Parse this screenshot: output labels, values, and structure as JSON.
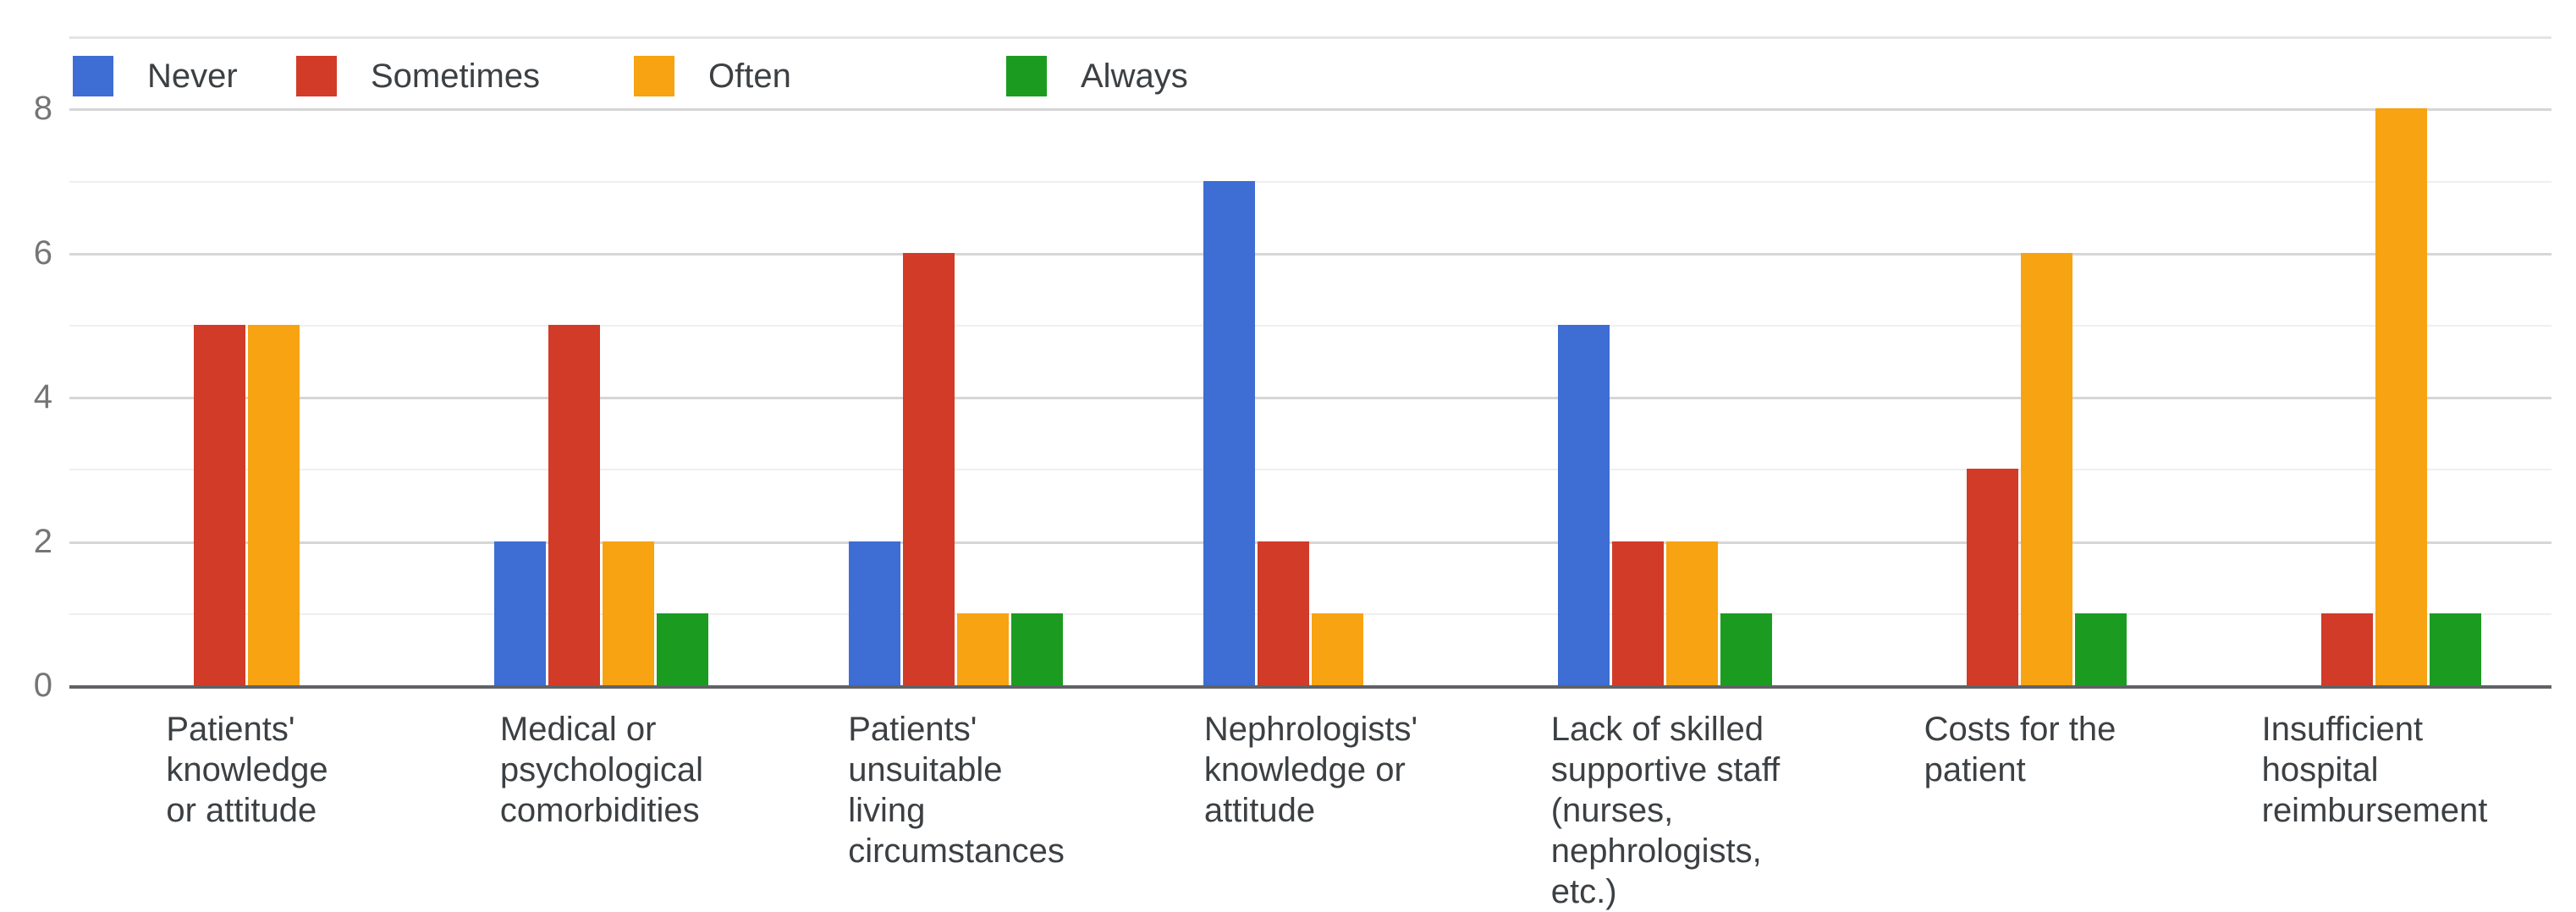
{
  "chart_data": {
    "type": "bar",
    "title": "",
    "xlabel": "",
    "ylabel": "",
    "categories": [
      "Patients'\nknowledge\nor attitude",
      "Medical or\npsychological\ncomorbidities",
      "Patients'\nunsuitable\nliving\ncircumstances",
      "Nephrologists'\nknowledge or\nattitude",
      "Lack of skilled\nsupportive staff\n(nurses,\nnephrologists,\netc.)",
      "Costs for the\npatient",
      "Insufficient\nhospital\nreimbursement"
    ],
    "series": [
      {
        "name": "Never",
        "color": "#3E6DD4",
        "values": [
          0,
          2,
          2,
          7,
          5,
          0,
          0
        ]
      },
      {
        "name": "Sometimes",
        "color": "#D23B27",
        "values": [
          5,
          5,
          6,
          2,
          2,
          3,
          1
        ]
      },
      {
        "name": "Often",
        "color": "#F7A312",
        "values": [
          5,
          2,
          1,
          1,
          2,
          6,
          8
        ]
      },
      {
        "name": "Always",
        "color": "#1B9C21",
        "values": [
          0,
          1,
          1,
          0,
          1,
          1,
          1
        ]
      }
    ],
    "ylim": [
      0,
      9
    ],
    "yticks": [
      0,
      2,
      4,
      6,
      8
    ],
    "grid": "horizontal",
    "legend_position": "top-left",
    "style": {
      "major_grid_color": "#d6d6d6",
      "minor_grid_color": "#efefef",
      "baseline_color": "#5f6368",
      "tick_label_color": "#757575",
      "category_label_color": "#3c4043",
      "background": "#ffffff"
    }
  }
}
